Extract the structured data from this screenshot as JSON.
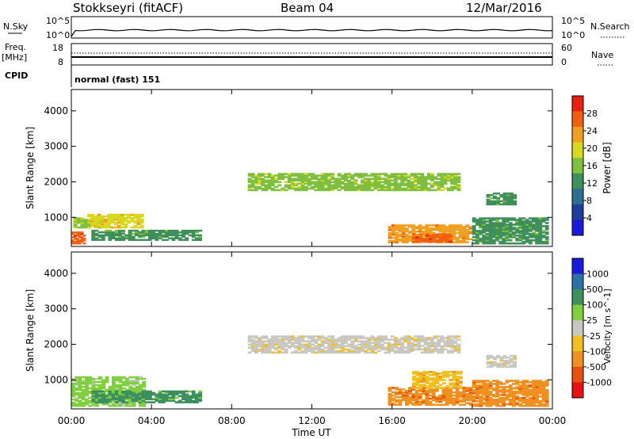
{
  "header": {
    "station": "Stokkseyri (fitACF)",
    "beam": "Beam 04",
    "date": "12/Mar/2016"
  },
  "status_panel": {
    "nsky_label": "N.Sky",
    "nsky_ticks": [
      "10^5",
      "10^0"
    ],
    "nsearch_label": "N.Search",
    "nsearch_ticks": [
      "10^5",
      "10^0"
    ],
    "freq_label": "Freq.",
    "freq_unit": "[MHz]",
    "freq_ticks": [
      "18",
      "8"
    ],
    "nave_label": "Nave",
    "nave_ticks": [
      "60",
      "0"
    ],
    "cpid_label": "CPID",
    "cpid_value": "normal (fast) 151"
  },
  "colors": {
    "power_scale": [
      "#1a1adb",
      "#1f3d9e",
      "#2e6e8f",
      "#3f8f5a",
      "#7fbf3f",
      "#d8d820",
      "#f0a020",
      "#f06010",
      "#e82010"
    ],
    "velocity_scale": [
      "#1a1adb",
      "#2f6fa8",
      "#3d8f5e",
      "#7fcf3f",
      "#c8c8c0",
      "#f0c020",
      "#f09020",
      "#e85010",
      "#e81010"
    ]
  },
  "chart_data": [
    {
      "type": "heatmap",
      "panel": "power",
      "ylabel": "Slant Range [km]",
      "yticks": [
        "1000",
        "2000",
        "3000",
        "4000"
      ],
      "ylim": [
        180,
        4600
      ],
      "xlim_hours": [
        0,
        24
      ],
      "colorbar_label": "Power [dB]",
      "colorbar_ticks": [
        "4",
        "8",
        "12",
        "16",
        "20",
        "24",
        "28"
      ],
      "colorbar_range": [
        0,
        30
      ],
      "regions": [
        {
          "t0": 0.0,
          "t1": 0.7,
          "r0": 250,
          "r1": 600,
          "value": 26
        },
        {
          "t0": 0.1,
          "t1": 1.5,
          "r0": 700,
          "r1": 1000,
          "value": 16
        },
        {
          "t0": 0.8,
          "t1": 3.6,
          "r0": 700,
          "r1": 1100,
          "value": 20
        },
        {
          "t0": 1.0,
          "t1": 6.5,
          "r0": 350,
          "r1": 650,
          "value": 10
        },
        {
          "t0": 8.8,
          "t1": 19.4,
          "r0": 1750,
          "r1": 2250,
          "value": 14
        },
        {
          "t0": 15.8,
          "t1": 20.0,
          "r0": 280,
          "r1": 800,
          "value": 22
        },
        {
          "t0": 17.0,
          "t1": 19.0,
          "r0": 300,
          "r1": 550,
          "value": 28
        },
        {
          "t0": 20.0,
          "t1": 23.8,
          "r0": 250,
          "r1": 1000,
          "value": 10
        },
        {
          "t0": 20.7,
          "t1": 22.2,
          "r0": 1350,
          "r1": 1700,
          "value": 12
        }
      ]
    },
    {
      "type": "heatmap",
      "panel": "velocity",
      "ylabel": "Slant Range [km]",
      "yticks": [
        "1000",
        "2000",
        "3000",
        "4000"
      ],
      "ylim": [
        180,
        4600
      ],
      "xlim_hours": [
        0,
        24
      ],
      "xticks": [
        "00:00",
        "04:00",
        "08:00",
        "12:00",
        "16:00",
        "20:00",
        "00:00"
      ],
      "xlabel": "Time UT",
      "colorbar_label": "Velocity [m s^-1]",
      "colorbar_ticks": [
        "1000",
        "500",
        "100",
        "25",
        "-25",
        "-100",
        "-500",
        "-1000"
      ],
      "regions": [
        {
          "t0": 0.0,
          "t1": 3.7,
          "r0": 250,
          "r1": 1100,
          "value": 60
        },
        {
          "t0": 1.0,
          "t1": 6.5,
          "r0": 350,
          "r1": 700,
          "value": 100
        },
        {
          "t0": 8.8,
          "t1": 19.4,
          "r0": 1750,
          "r1": 2250,
          "value": 0
        },
        {
          "t0": 15.8,
          "t1": 20.0,
          "r0": 280,
          "r1": 800,
          "value": -250
        },
        {
          "t0": 17.0,
          "t1": 19.5,
          "r0": 750,
          "r1": 1250,
          "value": -80
        },
        {
          "t0": 20.0,
          "t1": 23.8,
          "r0": 250,
          "r1": 1000,
          "value": -120
        },
        {
          "t0": 20.7,
          "t1": 22.2,
          "r0": 1350,
          "r1": 1700,
          "value": 0
        }
      ]
    }
  ]
}
